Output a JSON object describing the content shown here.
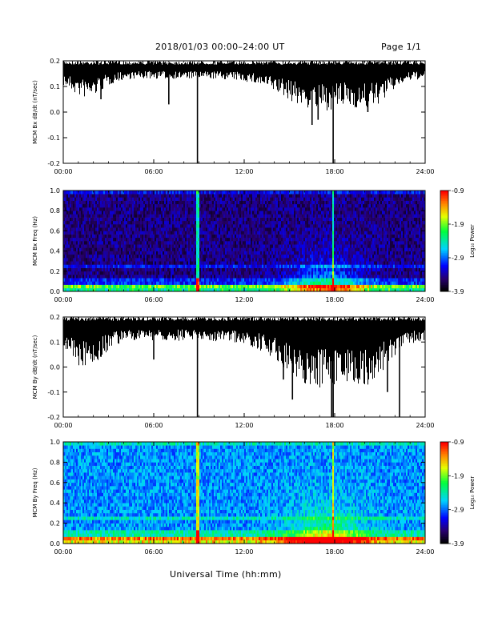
{
  "header": {
    "title": "2018/01/03  00:00–24:00 UT",
    "page": "Page 1/1"
  },
  "x_axis_title": "Universal Time (hh:mm)",
  "chart_data": [
    {
      "type": "line",
      "ylabel": "MCM Bx dB/dt (nT/sec)",
      "xlim": [
        0,
        24
      ],
      "ylim": [
        -0.2,
        0.2
      ],
      "xticks": [
        "00:00",
        "06:00",
        "12:00",
        "18:00",
        "24:00"
      ],
      "yticks": [
        "0.2",
        "0.1",
        "0.0",
        "-0.1",
        "-0.2"
      ],
      "spikes": [
        {
          "x": 8.9,
          "y": -0.2
        },
        {
          "x": 17.9,
          "y": -0.2
        },
        {
          "x": 2.5,
          "y": 0.05
        },
        {
          "x": 7.0,
          "y": 0.03
        },
        {
          "x": 16.5,
          "y": -0.05
        },
        {
          "x": 16.9,
          "y": -0.03
        },
        {
          "x": 20.2,
          "y": 0.0
        },
        {
          "x": 19.7,
          "y": 0.04
        }
      ]
    },
    {
      "type": "heatmap",
      "ylabel": "MCM Bx Freq (Hz)",
      "xlim": [
        0,
        24
      ],
      "ylim": [
        0,
        1.0
      ],
      "xticks": [
        "00:00",
        "06:00",
        "12:00",
        "18:00",
        "24:00"
      ],
      "yticks": [
        "1.0",
        "0.8",
        "0.6",
        "0.4",
        "0.2",
        "0.0"
      ],
      "colorbar_label": "Log₁₀ Power",
      "colorbar_ticks": [
        "-0.9",
        "-1.9",
        "-2.9",
        "-3.9"
      ],
      "colorbar_range": [
        -3.9,
        -0.9
      ],
      "base_level": -3.5
    },
    {
      "type": "line",
      "ylabel": "MCM By dB/dt (nT/sec)",
      "xlim": [
        0,
        24
      ],
      "ylim": [
        -0.2,
        0.2
      ],
      "xticks": [
        "00:00",
        "06:00",
        "12:00",
        "18:00",
        "24:00"
      ],
      "yticks": [
        "0.2",
        "0.1",
        "0.0",
        "-0.1",
        "-0.2"
      ],
      "spikes": [
        {
          "x": 8.9,
          "y": -0.2
        },
        {
          "x": 17.8,
          "y": -0.2
        },
        {
          "x": 17.9,
          "y": -0.2
        },
        {
          "x": 22.3,
          "y": -0.2
        },
        {
          "x": 15.2,
          "y": -0.13
        },
        {
          "x": 14.6,
          "y": -0.05
        },
        {
          "x": 6.0,
          "y": 0.03
        },
        {
          "x": 1.2,
          "y": 0.03
        },
        {
          "x": 21.5,
          "y": -0.1
        }
      ]
    },
    {
      "type": "heatmap",
      "ylabel": "MCM By Freq (Hz)",
      "xlim": [
        0,
        24
      ],
      "ylim": [
        0,
        1.0
      ],
      "xticks": [
        "00:00",
        "06:00",
        "12:00",
        "18:00",
        "24:00"
      ],
      "yticks": [
        "1.0",
        "0.8",
        "0.6",
        "0.4",
        "0.2",
        "0.0"
      ],
      "colorbar_label": "Log₁₀ Power",
      "colorbar_ticks": [
        "-0.9",
        "-1.9",
        "-2.9",
        "-3.9"
      ],
      "colorbar_range": [
        -3.9,
        -0.9
      ],
      "base_level": -2.8
    }
  ]
}
